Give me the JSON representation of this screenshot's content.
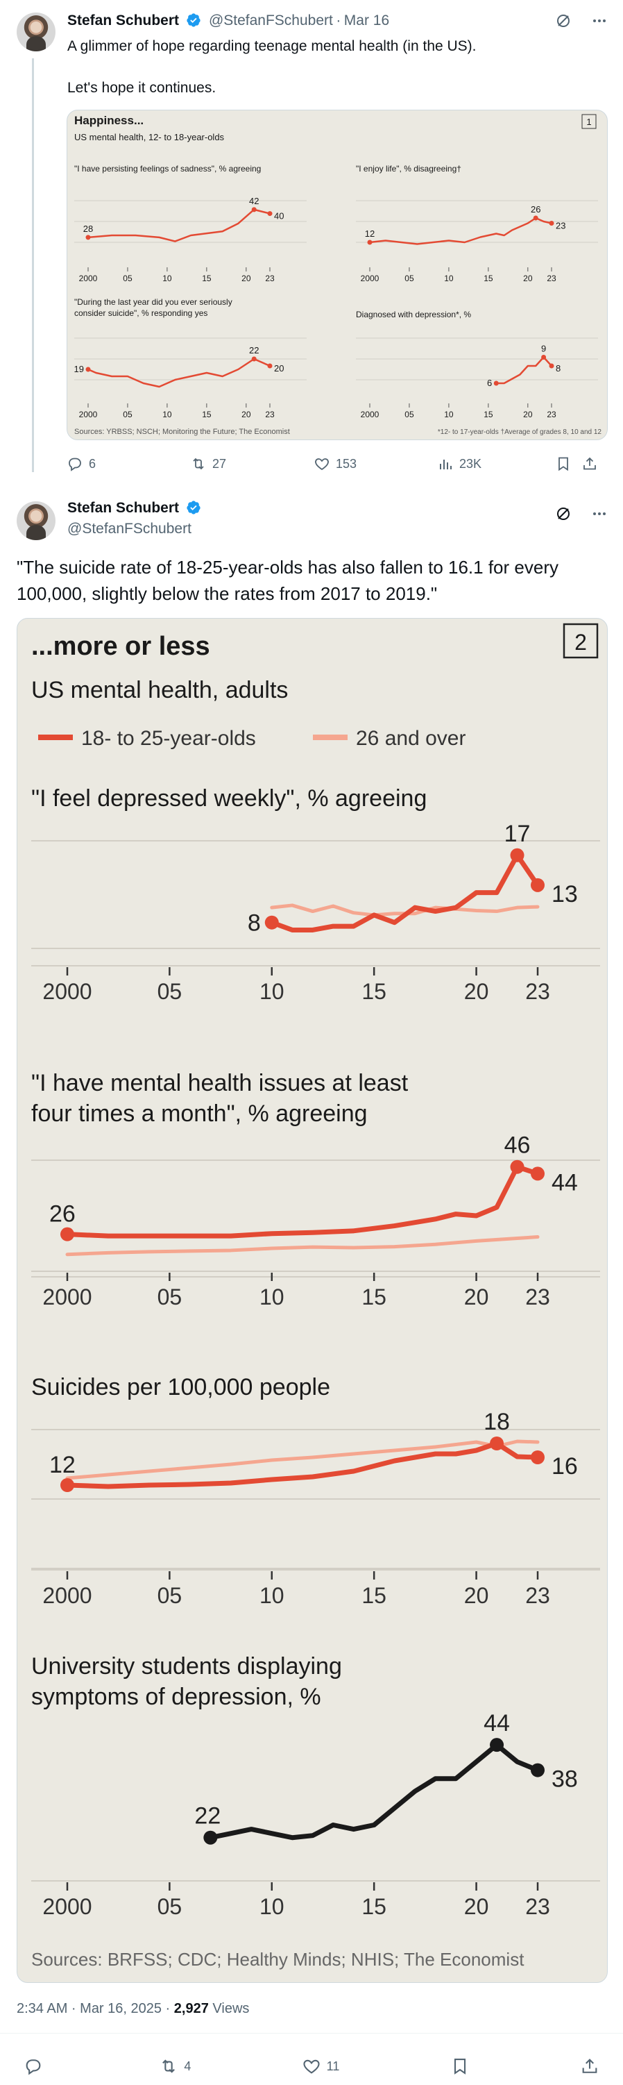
{
  "tweet1": {
    "author_name": "Stefan Schubert",
    "handle": "@StefanFSchubert",
    "date": "Mar 16",
    "separator": "·",
    "text_line1": "A glimmer of hope regarding teenage mental health (in the US).",
    "text_line2": "Let's hope it continues.",
    "stats": {
      "replies": "6",
      "reposts": "27",
      "likes": "153",
      "views": "23K"
    }
  },
  "tweet2": {
    "author_name": "Stefan Schubert",
    "handle": "@StefanFSchubert",
    "text": "\"The suicide rate of 18-25-year-olds has also fallen to 16.1 for every 100,000, slightly below the rates from 2017 to 2019.\"",
    "time": "2:34 AM · Mar 16, 2025 · ",
    "views_count": "2,927",
    "views_label": " Views",
    "stats": {
      "replies": "",
      "reposts": "4",
      "likes": "11"
    }
  },
  "colors": {
    "accent_red": "#e34a33",
    "light_red": "#f5a68f",
    "black_line": "#1a1a1a",
    "card_bg": "#ebe9e1",
    "verified_blue": "#1d9bf0"
  },
  "chart_data": [
    {
      "type": "line",
      "panel": "1",
      "title": "Happiness...",
      "subtitle": "US mental health, 12- to 18-year-olds",
      "footnote_left": "Sources: YRBSS; NSCH; Monitoring the Future; The Economist",
      "footnote_right": "*12- to 17-year-olds †Average of grades 8, 10 and 12",
      "x_ticks": [
        "2000",
        "05",
        "10",
        "15",
        "20",
        "23"
      ],
      "subplots": [
        {
          "title": "\"I have persisting feelings of sadness\", % agreeing",
          "x": [
            2000,
            2003,
            2006,
            2009,
            2011,
            2013,
            2015,
            2017,
            2019,
            2021,
            2023
          ],
          "y": [
            28,
            29,
            29,
            28,
            26,
            29,
            30,
            31,
            35,
            42,
            40
          ],
          "labels": [
            "28",
            "42",
            "40"
          ]
        },
        {
          "title": "\"I enjoy life\", % disagreeing†",
          "x": [
            2000,
            2002,
            2004,
            2006,
            2008,
            2010,
            2012,
            2014,
            2016,
            2017,
            2018,
            2019,
            2020,
            2021,
            2022,
            2023
          ],
          "y": [
            12,
            13,
            12,
            11,
            12,
            13,
            12,
            15,
            17,
            16,
            19,
            21,
            23,
            26,
            24,
            23
          ],
          "labels": [
            "12",
            "26",
            "23"
          ]
        },
        {
          "title": "\"During the last year did you ever seriously consider suicide\", % responding yes",
          "x": [
            2000,
            2001,
            2003,
            2005,
            2007,
            2009,
            2011,
            2013,
            2015,
            2017,
            2019,
            2021,
            2023
          ],
          "y": [
            19,
            18,
            17,
            17,
            15,
            14,
            16,
            17,
            18,
            17,
            19,
            22,
            20
          ],
          "labels": [
            "19",
            "22",
            "20"
          ]
        },
        {
          "title": "Diagnosed with depression*, %",
          "x": [
            2016,
            2017,
            2018,
            2019,
            2020,
            2021,
            2022,
            2023
          ],
          "y": [
            6,
            6,
            6.5,
            7,
            8,
            8,
            9,
            8
          ],
          "labels": [
            "6",
            "9",
            "8"
          ]
        }
      ]
    },
    {
      "type": "line",
      "panel": "2",
      "title": "...more or less",
      "subtitle": "US mental health, adults",
      "legend": [
        "18- to 25-year-olds",
        "26 and over"
      ],
      "source": "Sources: BRFSS; CDC; Healthy Minds; NHIS; The Economist",
      "x_ticks": [
        "2000",
        "05",
        "10",
        "15",
        "20",
        "23"
      ],
      "subplots": [
        {
          "title": "\"I feel depressed weekly\", % agreeing",
          "series": [
            {
              "name": "18- to 25-year-olds",
              "x": [
                2010,
                2011,
                2012,
                2013,
                2014,
                2015,
                2016,
                2017,
                2018,
                2019,
                2020,
                2021,
                2022,
                2023
              ],
              "y": [
                8,
                7,
                7,
                7.5,
                7.5,
                9,
                8,
                10,
                9.5,
                10,
                12,
                12,
                17,
                13
              ]
            },
            {
              "name": "26 and over",
              "x": [
                2010,
                2011,
                2012,
                2013,
                2014,
                2015,
                2016,
                2017,
                2018,
                2019,
                2020,
                2021,
                2022,
                2023
              ],
              "y": [
                10,
                10.3,
                9.5,
                10.2,
                9.3,
                9,
                9.2,
                9.2,
                10,
                9.8,
                9.6,
                9.5,
                10,
                10.1
              ]
            }
          ],
          "labels": [
            "8",
            "17",
            "13"
          ]
        },
        {
          "title": "\"I have mental health issues at least four times a month\", % agreeing",
          "series": [
            {
              "name": "18- to 25-year-olds",
              "x": [
                2000,
                2002,
                2004,
                2006,
                2008,
                2010,
                2012,
                2014,
                2016,
                2018,
                2019,
                2020,
                2021,
                2022,
                2023
              ],
              "y": [
                26,
                25.5,
                25.5,
                25.5,
                25.5,
                26.2,
                26.5,
                27,
                28.5,
                30.5,
                32,
                31.5,
                34,
                46,
                44
              ]
            },
            {
              "name": "26 and over",
              "x": [
                2000,
                2002,
                2004,
                2006,
                2008,
                2010,
                2012,
                2014,
                2016,
                2018,
                2020,
                2022,
                2023
              ],
              "y": [
                20,
                20.5,
                20.8,
                21,
                21.2,
                21.8,
                22.2,
                22,
                22.3,
                23,
                24,
                24.8,
                25.2
              ]
            }
          ],
          "labels": [
            "26",
            "46",
            "44"
          ]
        },
        {
          "title": "Suicides per 100,000 people",
          "series": [
            {
              "name": "18- to 25-year-olds",
              "x": [
                2000,
                2002,
                2004,
                2006,
                2008,
                2010,
                2012,
                2014,
                2016,
                2018,
                2019,
                2020,
                2021,
                2022,
                2023
              ],
              "y": [
                12,
                11.8,
                12,
                12.1,
                12.3,
                12.8,
                13.2,
                14,
                15.5,
                16.5,
                16.5,
                17,
                18,
                16.1,
                16
              ]
            },
            {
              "name": "26 and over",
              "x": [
                2000,
                2002,
                2004,
                2006,
                2008,
                2010,
                2012,
                2014,
                2016,
                2018,
                2020,
                2021,
                2022,
                2023
              ],
              "y": [
                13,
                13.5,
                14,
                14.5,
                15,
                15.6,
                16,
                16.5,
                17,
                17.5,
                18.2,
                17.6,
                18.3,
                18.2
              ]
            }
          ],
          "labels": [
            "12",
            "18",
            "16"
          ]
        },
        {
          "title": "University students displaying symptoms of depression, %",
          "series": [
            {
              "name": "University students",
              "x": [
                2007,
                2008,
                2009,
                2010,
                2011,
                2012,
                2013,
                2014,
                2015,
                2016,
                2017,
                2018,
                2019,
                2020,
                2021,
                2022,
                2023
              ],
              "y": [
                22,
                23,
                24,
                23,
                22,
                22.5,
                25,
                24,
                25,
                29,
                33,
                36,
                36,
                40,
                44,
                40,
                38
              ]
            }
          ],
          "labels": [
            "22",
            "44",
            "38"
          ]
        }
      ]
    }
  ]
}
